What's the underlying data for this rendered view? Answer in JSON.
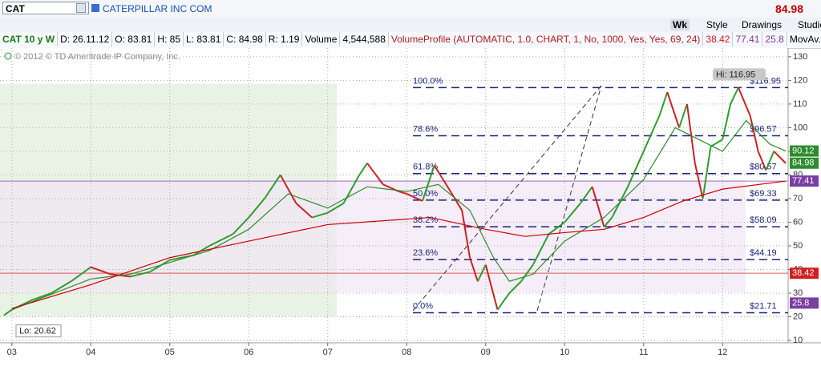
{
  "header": {
    "symbol": "CAT",
    "company": "CATERPILLAR INC COM",
    "last_price": "84.98"
  },
  "toolbar": {
    "buttons": [
      "Wk",
      "Style",
      "Drawings",
      "Studie"
    ]
  },
  "info_bar": {
    "chart_label": "CAT 10 y W",
    "items": [
      "D: 26.11.12",
      "O: 83.81",
      "H: 85",
      "L: 83.81",
      "C: 84.98",
      "R: 1.19",
      "Volume",
      "4,544,588"
    ],
    "study": "VolumeProfile (AUTOMATIC, 1.0, CHART, 1, No, 1000, Yes, Yes, 69, 24)",
    "study_values": [
      "38.42",
      "77.41",
      "25.8"
    ],
    "overflow": "MovAv..."
  },
  "chart_data": {
    "type": "line",
    "copyright": "© 2012 © TD Ameritrade IP Company, Inc.",
    "xlim": [
      2002.85,
      2012.83
    ],
    "xticks": [
      {
        "value": 2003,
        "label": "03"
      },
      {
        "value": 2004,
        "label": "04"
      },
      {
        "value": 2005,
        "label": "05"
      },
      {
        "value": 2006,
        "label": "06"
      },
      {
        "value": 2007,
        "label": "07"
      },
      {
        "value": 2008,
        "label": "08"
      },
      {
        "value": 2009,
        "label": "09"
      },
      {
        "value": 2010,
        "label": "10"
      },
      {
        "value": 2011,
        "label": "11"
      },
      {
        "value": 2012,
        "label": "12"
      }
    ],
    "ylim": [
      9,
      133
    ],
    "yticks": [
      10,
      20,
      30,
      40,
      50,
      60,
      70,
      80,
      90,
      100,
      110,
      120,
      130
    ],
    "grid": true,
    "series": [
      {
        "color": "#cc2222",
        "up_color": "#2e9e2e",
        "x": [
          2002.9,
          2003.0,
          2003.25,
          2003.5,
          2003.75,
          2004.0,
          2004.25,
          2004.5,
          2004.75,
          2005.0,
          2005.3,
          2005.5,
          2005.8,
          2006.0,
          2006.2,
          2006.4,
          2006.6,
          2006.8,
          2007.0,
          2007.2,
          2007.4,
          2007.5,
          2007.7,
          2007.9,
          2008.0,
          2008.2,
          2008.35,
          2008.5,
          2008.7,
          2008.8,
          2008.9,
          2009.0,
          2009.15,
          2009.3,
          2009.45,
          2009.6,
          2009.8,
          2010.0,
          2010.2,
          2010.35,
          2010.5,
          2010.6,
          2010.8,
          2011.0,
          2011.2,
          2011.3,
          2011.45,
          2011.55,
          2011.65,
          2011.75,
          2011.85,
          2012.0,
          2012.1,
          2012.2,
          2012.35,
          2012.45,
          2012.55,
          2012.65,
          2012.8
        ],
        "values": [
          20.62,
          23,
          27,
          30,
          35,
          41,
          38,
          37,
          39,
          44,
          46,
          50,
          55,
          62,
          70,
          80,
          68,
          62,
          64,
          68,
          80,
          85,
          76,
          73,
          72,
          69,
          84,
          76,
          65,
          45,
          35,
          42,
          23,
          30,
          35,
          42,
          55,
          60,
          68,
          75,
          58,
          62,
          75,
          90,
          105,
          115,
          100,
          110,
          85,
          70,
          92,
          95,
          110,
          116.95,
          105,
          90,
          82,
          90,
          84.98
        ]
      },
      {
        "color": "#2e8b2e",
        "x": [
          2003,
          2004,
          2004.5,
          2005,
          2005.5,
          2006,
          2006.5,
          2007,
          2007.5,
          2008,
          2008.4,
          2008.8,
          2009.1,
          2009.3,
          2009.6,
          2010,
          2010.5,
          2011,
          2011.4,
          2011.7,
          2012,
          2012.3,
          2012.6,
          2012.8
        ],
        "values": [
          23,
          36,
          38,
          43,
          48,
          57,
          72,
          66,
          75,
          73,
          76,
          65,
          45,
          35,
          38,
          52,
          62,
          78,
          100,
          95,
          90,
          103,
          93,
          90.12
        ]
      },
      {
        "color": "#cc0000",
        "x": [
          2003,
          2004,
          2005,
          2006,
          2007,
          2008.3,
          2009,
          2009.5,
          2010,
          2010.5,
          2011,
          2011.5,
          2012,
          2012.8
        ],
        "values": [
          23.5,
          33.6,
          45,
          52,
          59,
          62,
          57,
          54,
          55.6,
          57,
          62,
          69,
          74,
          77.41
        ]
      }
    ],
    "fib_levels": {
      "color": "#1a237e",
      "ratios": [
        "100.0%",
        "78.6%",
        "61.8%",
        "50.0%",
        "38.2%",
        "23.6%",
        "0.0%"
      ],
      "values": [
        116.95,
        96.57,
        80.57,
        69.33,
        58.09,
        44.19,
        21.71
      ],
      "value_labels": [
        "$116.95",
        "$96.57",
        "$80.57",
        "$69.33",
        "$58.09",
        "$44.19",
        "$21.71"
      ]
    },
    "price_tags": [
      {
        "value": 90.12,
        "color": "#2e8b2e",
        "line": false
      },
      {
        "value": 84.98,
        "color": "#2e8b2e",
        "line": false
      },
      {
        "value": 77.41,
        "color": "#7b3fa0",
        "line": true
      },
      {
        "value": 38.42,
        "color": "#d02020",
        "line": true
      },
      {
        "value": 25.8,
        "color": "#7b3fa0",
        "line": false
      }
    ],
    "hi": {
      "label": "Hi: 116.95",
      "value": 116.95
    },
    "lo": {
      "label": "Lo: 20.62",
      "value": 20.62
    }
  }
}
